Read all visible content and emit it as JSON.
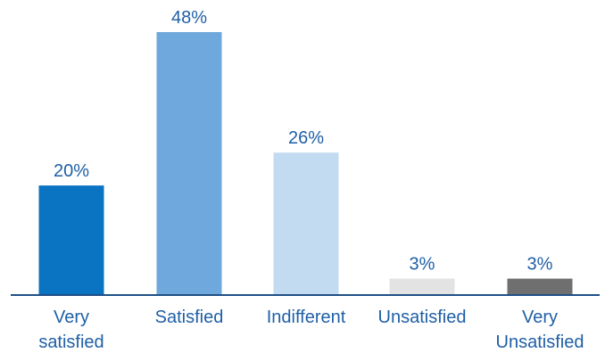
{
  "chart_data": {
    "type": "bar",
    "categories": [
      [
        "Very",
        "satisfied"
      ],
      [
        "Satisfied"
      ],
      [
        "Indifferent"
      ],
      [
        "Unsatisfied"
      ],
      [
        "Very",
        "Unsatisfied"
      ]
    ],
    "values": [
      20,
      48,
      26,
      3,
      3
    ],
    "value_labels": [
      "20%",
      "48%",
      "26%",
      "3%",
      "3%"
    ],
    "colors": [
      "#0a74c2",
      "#6ea8dc",
      "#c3dbf0",
      "#e3e3e3",
      "#6f6f6f"
    ],
    "title": "",
    "xlabel": "",
    "ylabel": "",
    "ylim": [
      0,
      48
    ],
    "grid": false,
    "axis_color": "#1f4f86",
    "text_color": "#1f5fa6"
  }
}
